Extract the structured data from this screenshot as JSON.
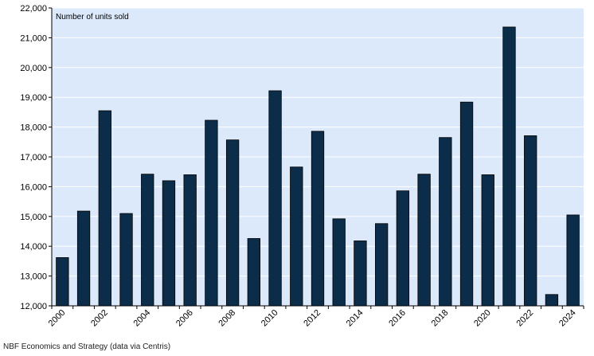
{
  "chart_data": {
    "type": "bar",
    "title": "",
    "xlabel": "",
    "ylabel": "Number of units sold",
    "categories": [
      "2000",
      "2001",
      "2002",
      "2003",
      "2004",
      "2005",
      "2006",
      "2007",
      "2008",
      "2009",
      "2010",
      "2011",
      "2012",
      "2013",
      "2014",
      "2015",
      "2016",
      "2017",
      "2018",
      "2019",
      "2020",
      "2021",
      "2022",
      "2023",
      "2024"
    ],
    "x_tick_labels": [
      "2000",
      "2002",
      "2004",
      "2006",
      "2008",
      "2010",
      "2012",
      "2014",
      "2016",
      "2018",
      "2020",
      "2022",
      "2024"
    ],
    "values": [
      13620,
      15180,
      18550,
      15100,
      16420,
      16200,
      16400,
      18230,
      17570,
      14260,
      19220,
      16660,
      17860,
      14920,
      14180,
      14760,
      15860,
      16420,
      17650,
      18840,
      16400,
      21360,
      17710,
      12380,
      15050
    ],
    "ylim": [
      12000,
      22000
    ],
    "y_ticks": [
      12000,
      13000,
      14000,
      15000,
      16000,
      17000,
      18000,
      19000,
      20000,
      21000,
      22000
    ],
    "y_tick_labels": [
      "12,000",
      "13,000",
      "14,000",
      "15,000",
      "16,000",
      "17,000",
      "18,000",
      "19,000",
      "20,000",
      "21,000",
      "22,000"
    ],
    "grid": true,
    "bar_color": "#0b2d4a",
    "plot_background": "#dce9fb",
    "grid_color": "#ffffff"
  },
  "source_note": "NBF Economics and Strategy (data via Centris)"
}
